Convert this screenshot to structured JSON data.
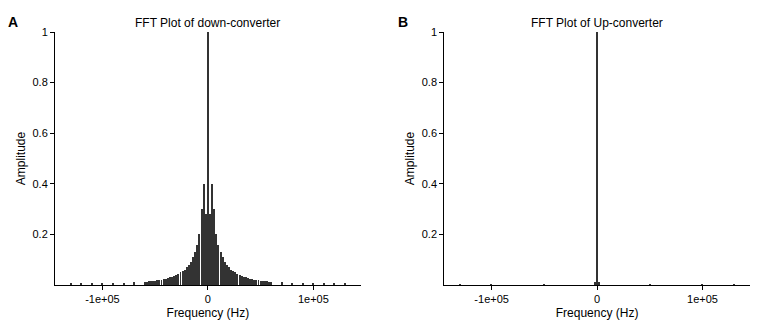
{
  "chart_data": [
    {
      "type": "bar",
      "title": "FFT Plot of down-converter",
      "annotations": [
        {
          "text": "A"
        }
      ],
      "x_label": "Frequency (Hz)",
      "y_label": "Amplitude",
      "color": "#333333",
      "grid": false,
      "xlim": [
        -145000,
        145000
      ],
      "xticks": [
        {
          "value": -100000,
          "label": "-1e+05"
        },
        0,
        {
          "value": 100000,
          "label": "1e+05"
        }
      ],
      "ylim": [
        0,
        1
      ],
      "yticks": [
        0.2,
        0.4,
        0.6,
        0.8,
        1
      ],
      "x": [
        -130000,
        -120000,
        -110000,
        -100000,
        -90000,
        -80000,
        -70000,
        -60000,
        -58000,
        -56000,
        -54000,
        -52000,
        -50000,
        -48000,
        -46000,
        -44000,
        -42000,
        -40000,
        -38000,
        -36000,
        -34000,
        -32000,
        -30000,
        -28000,
        -26000,
        -24000,
        -22000,
        -20000,
        -18000,
        -16000,
        -14000,
        -12000,
        -10000,
        -8000,
        -6000,
        -4000,
        -2000,
        0,
        2000,
        4000,
        6000,
        8000,
        10000,
        12000,
        14000,
        16000,
        18000,
        20000,
        22000,
        24000,
        26000,
        28000,
        30000,
        32000,
        34000,
        36000,
        38000,
        40000,
        42000,
        44000,
        46000,
        48000,
        50000,
        52000,
        54000,
        56000,
        58000,
        60000,
        70000,
        80000,
        90000,
        100000,
        110000,
        120000,
        130000
      ],
      "values": [
        0.005,
        0.006,
        0.006,
        0.007,
        0.008,
        0.009,
        0.01,
        0.012,
        0.013,
        0.014,
        0.015,
        0.016,
        0.017,
        0.018,
        0.019,
        0.021,
        0.023,
        0.025,
        0.027,
        0.03,
        0.033,
        0.036,
        0.04,
        0.045,
        0.05,
        0.055,
        0.06,
        0.07,
        0.08,
        0.09,
        0.11,
        0.13,
        0.16,
        0.2,
        0.3,
        0.4,
        0.28,
        1,
        0.28,
        0.4,
        0.3,
        0.2,
        0.16,
        0.13,
        0.11,
        0.09,
        0.08,
        0.07,
        0.06,
        0.055,
        0.05,
        0.045,
        0.04,
        0.036,
        0.033,
        0.03,
        0.027,
        0.025,
        0.023,
        0.021,
        0.019,
        0.018,
        0.017,
        0.016,
        0.015,
        0.014,
        0.013,
        0.012,
        0.01,
        0.009,
        0.008,
        0.007,
        0.006,
        0.006,
        0.005
      ]
    },
    {
      "type": "bar",
      "title": "FFT Plot of Up-converter",
      "annotations": [
        {
          "text": "B"
        }
      ],
      "x_label": "Frequency (Hz)",
      "y_label": "Amplitude",
      "color": "#333333",
      "grid": false,
      "xlim": [
        -145000,
        145000
      ],
      "xticks": [
        {
          "value": -100000,
          "label": "-1e+05"
        },
        0,
        {
          "value": 100000,
          "label": "1e+05"
        }
      ],
      "ylim": [
        0,
        1
      ],
      "yticks": [
        0.2,
        0.4,
        0.6,
        0.8,
        1
      ],
      "x": [
        -130000,
        -100000,
        -50000,
        -2000,
        0,
        2000,
        50000,
        100000,
        130000
      ],
      "values": [
        0.002,
        0.002,
        0.003,
        0.01,
        1,
        0.01,
        0.003,
        0.002,
        0.002
      ]
    }
  ]
}
